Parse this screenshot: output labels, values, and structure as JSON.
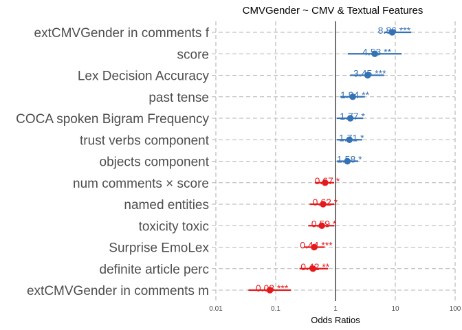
{
  "chart_data": {
    "type": "forest",
    "title": "CMVGender  ~  CMV & Textual Features",
    "xlabel": "Odds Ratios",
    "ylabel": "",
    "x_scale": "log10",
    "xlim": [
      0.01,
      100
    ],
    "x_ticks": [
      {
        "value": 0.01,
        "label": "0.01"
      },
      {
        "value": 0.1,
        "label": "0.1"
      },
      {
        "value": 1,
        "label": "1"
      },
      {
        "value": 10,
        "label": "10"
      },
      {
        "value": 100,
        "label": "100"
      }
    ],
    "reference_line": 1,
    "grid": true,
    "colors": {
      "positive": "#3572b4",
      "negative": "#e41a1c",
      "grid": "#b3b3b3",
      "reference": "#000000"
    },
    "terms": [
      {
        "label": "extCMVGender in comments f",
        "estimate": 8.86,
        "ci": [
          6.5,
          18.5
        ],
        "text": "8.86 ***",
        "effect": "positive"
      },
      {
        "label": "score",
        "estimate": 4.53,
        "ci": [
          1.6,
          12.8
        ],
        "text": "4.53 **",
        "effect": "positive"
      },
      {
        "label": "Lex Decision Accuracy",
        "estimate": 3.45,
        "ci": [
          1.75,
          6.5
        ],
        "text": "3.45 ***",
        "effect": "positive"
      },
      {
        "label": "past tense",
        "estimate": 1.94,
        "ci": [
          1.2,
          3.1
        ],
        "text": "1.94 **",
        "effect": "positive"
      },
      {
        "label": "COCA spoken Bigram Frequency",
        "estimate": 1.77,
        "ci": [
          1.05,
          2.9
        ],
        "text": "1.77 *",
        "effect": "positive"
      },
      {
        "label": "trust verbs component",
        "estimate": 1.71,
        "ci": [
          1.05,
          2.8
        ],
        "text": "1.71 *",
        "effect": "positive"
      },
      {
        "label": "objects component",
        "estimate": 1.58,
        "ci": [
          1.05,
          2.4
        ],
        "text": "1.58 *",
        "effect": "positive"
      },
      {
        "label": "num comments × score",
        "estimate": 0.67,
        "ci": [
          0.45,
          0.95
        ],
        "text": "0.67 *",
        "effect": "negative"
      },
      {
        "label": "named entities",
        "estimate": 0.62,
        "ci": [
          0.37,
          0.96
        ],
        "text": "0.62 *",
        "effect": "negative"
      },
      {
        "label": "toxicity toxic",
        "estimate": 0.59,
        "ci": [
          0.35,
          0.96
        ],
        "text": "0.59 *",
        "effect": "negative"
      },
      {
        "label": "Surprise EmoLex",
        "estimate": 0.44,
        "ci": [
          0.3,
          0.66
        ],
        "text": "0.44 ***",
        "effect": "negative"
      },
      {
        "label": "definite article perc",
        "estimate": 0.42,
        "ci": [
          0.25,
          0.75
        ],
        "text": "0.42 **",
        "effect": "negative"
      },
      {
        "label": "extCMVGender in comments m",
        "estimate": 0.08,
        "ci": [
          0.035,
          0.18
        ],
        "text": "0.08 ***",
        "effect": "negative"
      }
    ]
  }
}
